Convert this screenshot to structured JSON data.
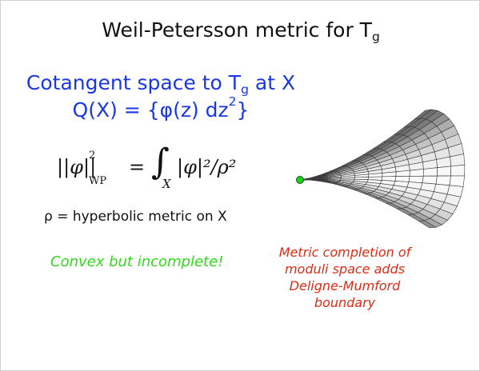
{
  "slide": {
    "title": {
      "text": "Weil-Petersson metric for T",
      "subscript": "g"
    },
    "cotangent": {
      "text": "Cotangent space to T",
      "subscript": "g",
      "suffix": " at  X"
    },
    "quadratic": {
      "text": "Q(X) = {φ(z) dz",
      "superscript": "2",
      "suffix": "}"
    },
    "formula": {
      "lhs": "||φ||",
      "lhs_sup": "2",
      "lhs_sub": "WP",
      "equals": "=",
      "integral": "∫",
      "integral_sub": "X",
      "integrand": "|φ|²/ρ²"
    },
    "rho_definition": "ρ = hyperbolic metric on X",
    "convex_note": "Convex but incomplete!",
    "caption_lines": [
      "Metric completion of",
      "moduli space adds",
      "Deligne-Mumford",
      "boundary"
    ],
    "colors": {
      "blue": "#1a37e6",
      "green": "#2fdc1a",
      "red": "#e02a14",
      "point": "#22cc22"
    }
  }
}
